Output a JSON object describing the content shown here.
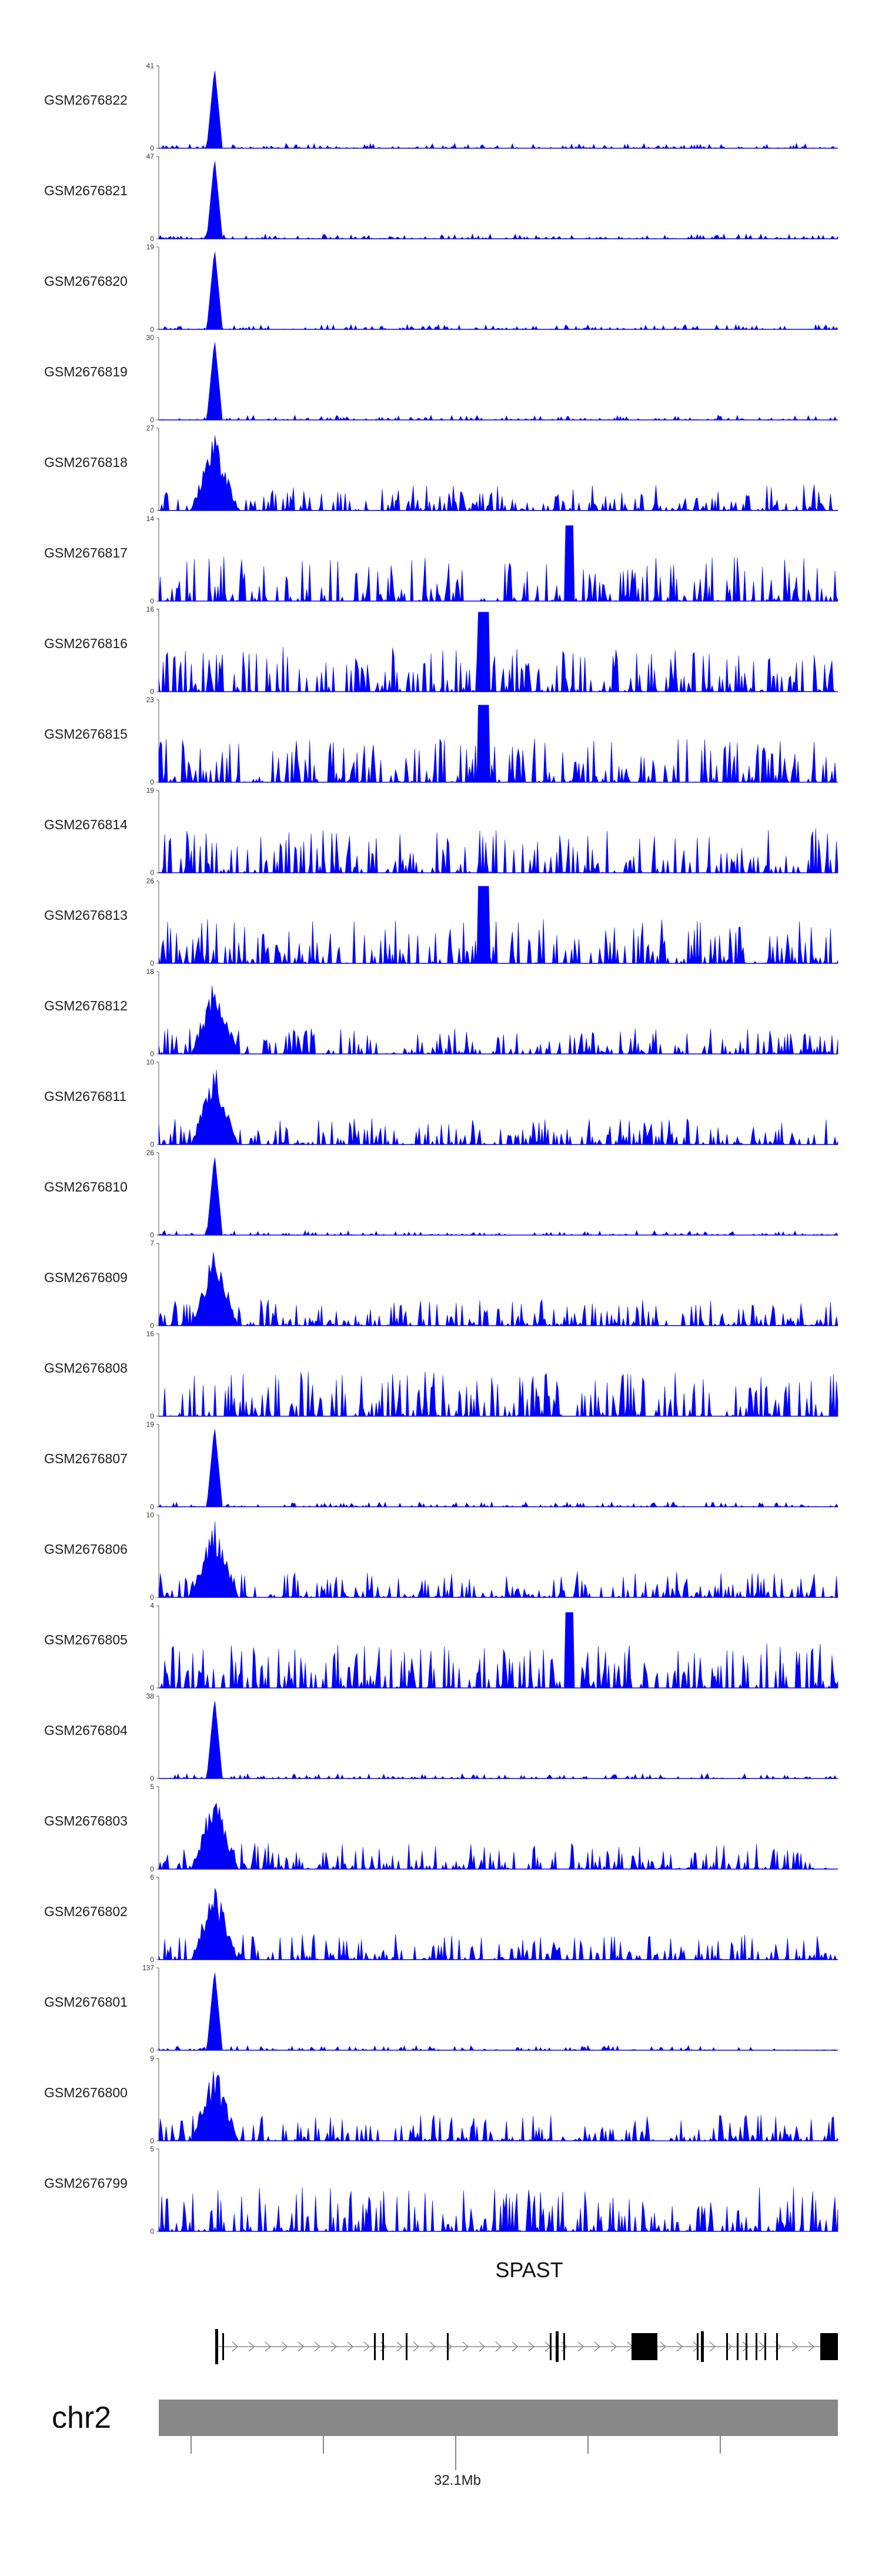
{
  "chart_data": {
    "type": "area",
    "color": "#0000ff",
    "tracks": [
      {
        "name": "GSM2676822",
        "ymax": "41",
        "ymin": "0",
        "peak": "sharp"
      },
      {
        "name": "GSM2676821",
        "ymax": "47",
        "ymin": "0",
        "peak": "sharp"
      },
      {
        "name": "GSM2676820",
        "ymax": "19",
        "ymin": "0",
        "peak": "sharp"
      },
      {
        "name": "GSM2676819",
        "ymax": "30",
        "ymin": "0",
        "peak": "sharp"
      },
      {
        "name": "GSM2676818",
        "ymax": "27",
        "ymin": "0",
        "peak": "medium"
      },
      {
        "name": "GSM2676817",
        "ymax": "14",
        "ymin": "0",
        "peak": "noisy"
      },
      {
        "name": "GSM2676816",
        "ymax": "16",
        "ymin": "0",
        "peak": "noisy"
      },
      {
        "name": "GSM2676815",
        "ymax": "23",
        "ymin": "0",
        "peak": "noisy"
      },
      {
        "name": "GSM2676814",
        "ymax": "19",
        "ymin": "0",
        "peak": "noisy"
      },
      {
        "name": "GSM2676813",
        "ymax": "26",
        "ymin": "0",
        "peak": "noisy"
      },
      {
        "name": "GSM2676812",
        "ymax": "18",
        "ymin": "0",
        "peak": "medium"
      },
      {
        "name": "GSM2676811",
        "ymax": "10",
        "ymin": "0",
        "peak": "medium"
      },
      {
        "name": "GSM2676810",
        "ymax": "26",
        "ymin": "0",
        "peak": "sharp"
      },
      {
        "name": "GSM2676809",
        "ymax": "7",
        "ymin": "0",
        "peak": "medium"
      },
      {
        "name": "GSM2676808",
        "ymax": "16",
        "ymin": "0",
        "peak": "noisy"
      },
      {
        "name": "GSM2676807",
        "ymax": "19",
        "ymin": "0",
        "peak": "sharp"
      },
      {
        "name": "GSM2676806",
        "ymax": "10",
        "ymin": "0",
        "peak": "medium"
      },
      {
        "name": "GSM2676805",
        "ymax": "4",
        "ymin": "0",
        "peak": "noisy"
      },
      {
        "name": "GSM2676804",
        "ymax": "38",
        "ymin": "0",
        "peak": "sharp"
      },
      {
        "name": "GSM2676803",
        "ymax": "5",
        "ymin": "0",
        "peak": "medium"
      },
      {
        "name": "GSM2676802",
        "ymax": "6",
        "ymin": "0",
        "peak": "medium"
      },
      {
        "name": "GSM2676801",
        "ymax": "137",
        "ymin": "0",
        "peak": "sharp"
      },
      {
        "name": "GSM2676800",
        "ymax": "9",
        "ymin": "0",
        "peak": "medium"
      },
      {
        "name": "GSM2676799",
        "ymax": "5",
        "ymin": "0",
        "peak": "noisy"
      }
    ],
    "gene": {
      "name": "SPAST"
    },
    "chromosome": {
      "name": "chr2",
      "tick_label": "32.1Mb"
    }
  }
}
